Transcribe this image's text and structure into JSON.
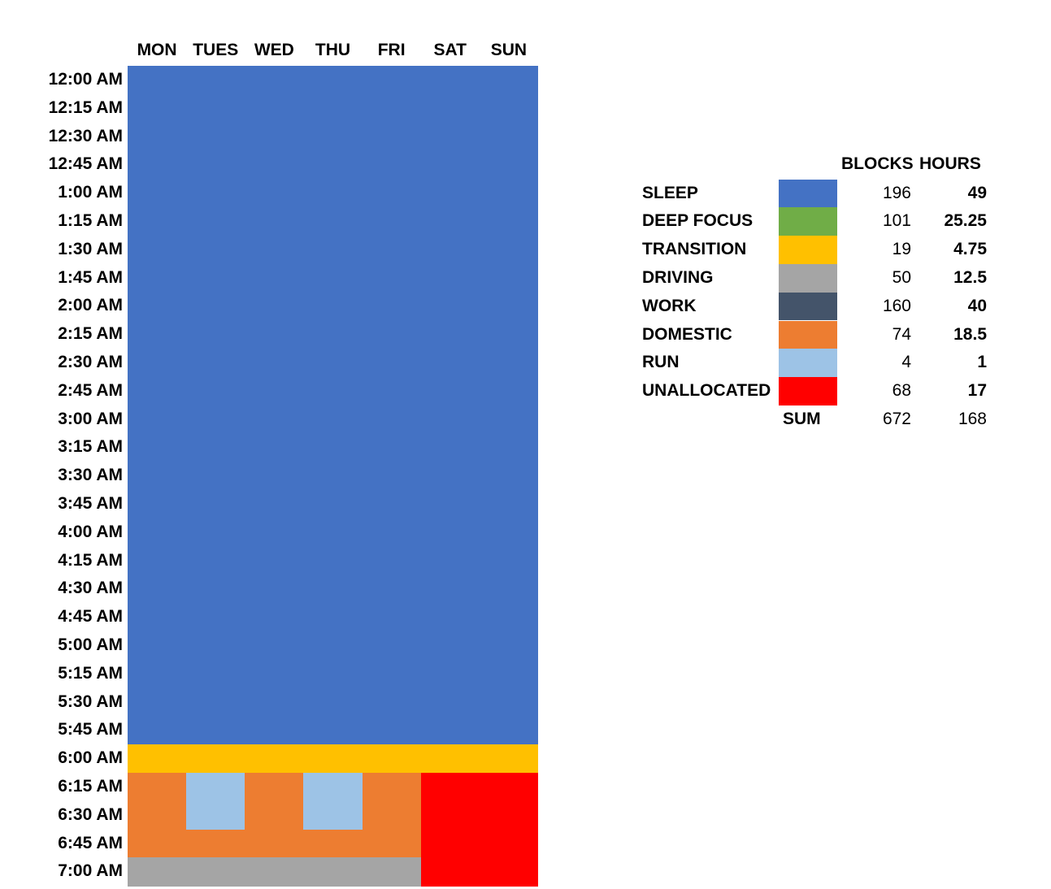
{
  "chart_data": {
    "type": "heatmap",
    "days": [
      "MON",
      "TUES",
      "WED",
      "THU",
      "FRI",
      "SAT",
      "SUN"
    ],
    "times": [
      "12:00 AM",
      "12:15 AM",
      "12:30 AM",
      "12:45 AM",
      "1:00 AM",
      "1:15 AM",
      "1:30 AM",
      "1:45 AM",
      "2:00 AM",
      "2:15 AM",
      "2:30 AM",
      "2:45 AM",
      "3:00 AM",
      "3:15 AM",
      "3:30 AM",
      "3:45 AM",
      "4:00 AM",
      "4:15 AM",
      "4:30 AM",
      "4:45 AM",
      "5:00 AM",
      "5:15 AM",
      "5:30 AM",
      "5:45 AM",
      "6:00 AM",
      "6:15 AM",
      "6:30 AM",
      "6:45 AM",
      "7:00 AM"
    ],
    "grid": [
      [
        "SLEEP",
        "SLEEP",
        "SLEEP",
        "SLEEP",
        "SLEEP",
        "SLEEP",
        "SLEEP"
      ],
      [
        "SLEEP",
        "SLEEP",
        "SLEEP",
        "SLEEP",
        "SLEEP",
        "SLEEP",
        "SLEEP"
      ],
      [
        "SLEEP",
        "SLEEP",
        "SLEEP",
        "SLEEP",
        "SLEEP",
        "SLEEP",
        "SLEEP"
      ],
      [
        "SLEEP",
        "SLEEP",
        "SLEEP",
        "SLEEP",
        "SLEEP",
        "SLEEP",
        "SLEEP"
      ],
      [
        "SLEEP",
        "SLEEP",
        "SLEEP",
        "SLEEP",
        "SLEEP",
        "SLEEP",
        "SLEEP"
      ],
      [
        "SLEEP",
        "SLEEP",
        "SLEEP",
        "SLEEP",
        "SLEEP",
        "SLEEP",
        "SLEEP"
      ],
      [
        "SLEEP",
        "SLEEP",
        "SLEEP",
        "SLEEP",
        "SLEEP",
        "SLEEP",
        "SLEEP"
      ],
      [
        "SLEEP",
        "SLEEP",
        "SLEEP",
        "SLEEP",
        "SLEEP",
        "SLEEP",
        "SLEEP"
      ],
      [
        "SLEEP",
        "SLEEP",
        "SLEEP",
        "SLEEP",
        "SLEEP",
        "SLEEP",
        "SLEEP"
      ],
      [
        "SLEEP",
        "SLEEP",
        "SLEEP",
        "SLEEP",
        "SLEEP",
        "SLEEP",
        "SLEEP"
      ],
      [
        "SLEEP",
        "SLEEP",
        "SLEEP",
        "SLEEP",
        "SLEEP",
        "SLEEP",
        "SLEEP"
      ],
      [
        "SLEEP",
        "SLEEP",
        "SLEEP",
        "SLEEP",
        "SLEEP",
        "SLEEP",
        "SLEEP"
      ],
      [
        "SLEEP",
        "SLEEP",
        "SLEEP",
        "SLEEP",
        "SLEEP",
        "SLEEP",
        "SLEEP"
      ],
      [
        "SLEEP",
        "SLEEP",
        "SLEEP",
        "SLEEP",
        "SLEEP",
        "SLEEP",
        "SLEEP"
      ],
      [
        "SLEEP",
        "SLEEP",
        "SLEEP",
        "SLEEP",
        "SLEEP",
        "SLEEP",
        "SLEEP"
      ],
      [
        "SLEEP",
        "SLEEP",
        "SLEEP",
        "SLEEP",
        "SLEEP",
        "SLEEP",
        "SLEEP"
      ],
      [
        "SLEEP",
        "SLEEP",
        "SLEEP",
        "SLEEP",
        "SLEEP",
        "SLEEP",
        "SLEEP"
      ],
      [
        "SLEEP",
        "SLEEP",
        "SLEEP",
        "SLEEP",
        "SLEEP",
        "SLEEP",
        "SLEEP"
      ],
      [
        "SLEEP",
        "SLEEP",
        "SLEEP",
        "SLEEP",
        "SLEEP",
        "SLEEP",
        "SLEEP"
      ],
      [
        "SLEEP",
        "SLEEP",
        "SLEEP",
        "SLEEP",
        "SLEEP",
        "SLEEP",
        "SLEEP"
      ],
      [
        "SLEEP",
        "SLEEP",
        "SLEEP",
        "SLEEP",
        "SLEEP",
        "SLEEP",
        "SLEEP"
      ],
      [
        "SLEEP",
        "SLEEP",
        "SLEEP",
        "SLEEP",
        "SLEEP",
        "SLEEP",
        "SLEEP"
      ],
      [
        "SLEEP",
        "SLEEP",
        "SLEEP",
        "SLEEP",
        "SLEEP",
        "SLEEP",
        "SLEEP"
      ],
      [
        "SLEEP",
        "SLEEP",
        "SLEEP",
        "SLEEP",
        "SLEEP",
        "SLEEP",
        "SLEEP"
      ],
      [
        "TRANSITION",
        "TRANSITION",
        "TRANSITION",
        "TRANSITION",
        "TRANSITION",
        "TRANSITION",
        "TRANSITION"
      ],
      [
        "DOMESTIC",
        "RUN",
        "DOMESTIC",
        "RUN",
        "DOMESTIC",
        "UNALLOCATED",
        "UNALLOCATED"
      ],
      [
        "DOMESTIC",
        "RUN",
        "DOMESTIC",
        "RUN",
        "DOMESTIC",
        "UNALLOCATED",
        "UNALLOCATED"
      ],
      [
        "DOMESTIC",
        "DOMESTIC",
        "DOMESTIC",
        "DOMESTIC",
        "DOMESTIC",
        "UNALLOCATED",
        "UNALLOCATED"
      ],
      [
        "DRIVING",
        "DRIVING",
        "DRIVING",
        "DRIVING",
        "DRIVING",
        "UNALLOCATED",
        "UNALLOCATED"
      ]
    ],
    "legend": {
      "headers": {
        "blocks": "BLOCKS",
        "hours": "HOURS"
      },
      "categories": [
        {
          "name": "SLEEP",
          "color": "#4472C4",
          "blocks": 196,
          "hours": 49
        },
        {
          "name": "DEEP FOCUS",
          "color": "#70AD47",
          "blocks": 101,
          "hours": 25.25
        },
        {
          "name": "TRANSITION",
          "color": "#FFC000",
          "blocks": 19,
          "hours": 4.75
        },
        {
          "name": "DRIVING",
          "color": "#A5A5A5",
          "blocks": 50,
          "hours": 12.5
        },
        {
          "name": "WORK",
          "color": "#44546A",
          "blocks": 160,
          "hours": 40
        },
        {
          "name": "DOMESTIC",
          "color": "#ED7D31",
          "blocks": 74,
          "hours": 18.5
        },
        {
          "name": "RUN",
          "color": "#9DC3E6",
          "blocks": 4,
          "hours": 1
        },
        {
          "name": "UNALLOCATED",
          "color": "#FF0000",
          "blocks": 68,
          "hours": 17
        }
      ],
      "sum": {
        "label": "SUM",
        "blocks": 672,
        "hours": 168
      }
    }
  }
}
